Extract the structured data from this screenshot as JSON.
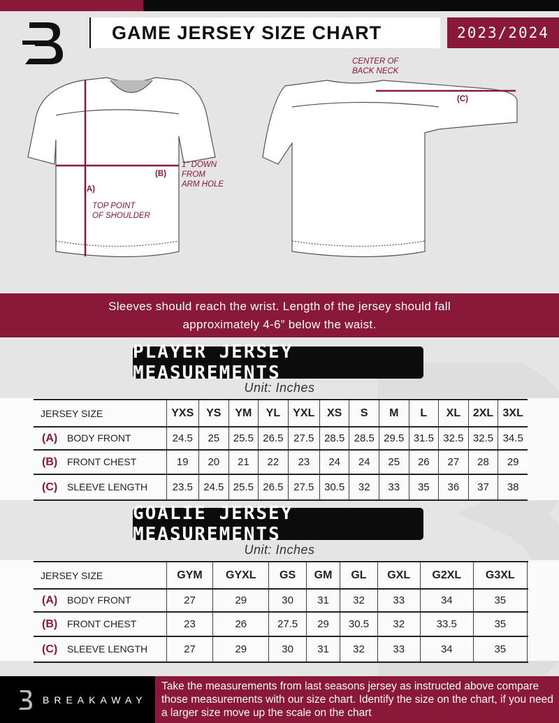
{
  "header": {
    "title": "GAME JERSEY SIZE CHART",
    "season": "2023/2024",
    "logo_letter": "B"
  },
  "diagram": {
    "front_notes": {
      "a": "(A)",
      "top_point": "TOP POINT\nOF SHOULDER",
      "b": "(B)",
      "arm_hole": "1\" DOWN\nFROM\nARM HOLE"
    },
    "back_notes": {
      "center": "CENTER OF\nBACK NECK",
      "c": "(C)"
    }
  },
  "instructions": {
    "line1": "Sleeves should reach the wrist. Length of the jersey should fall",
    "line2": "approximately 4-6” below the waist."
  },
  "player": {
    "title": "PLAYER JERSEY MEASUREMENTS",
    "unit": "Unit: Inches",
    "size_label": "JERSEY SIZE",
    "sizes": [
      "YXS",
      "YS",
      "YM",
      "YL",
      "YXL",
      "XS",
      "S",
      "M",
      "L",
      "XL",
      "2XL",
      "3XL"
    ],
    "rows": [
      {
        "letter": "(A)",
        "label": "BODY FRONT",
        "values": [
          "24.5",
          "25",
          "25.5",
          "26.5",
          "27.5",
          "28.5",
          "28.5",
          "29.5",
          "31.5",
          "32.5",
          "32.5",
          "34.5"
        ]
      },
      {
        "letter": "(B)",
        "label": "FRONT CHEST",
        "values": [
          "19",
          "20",
          "21",
          "22",
          "23",
          "24",
          "24",
          "25",
          "26",
          "27",
          "28",
          "29"
        ]
      },
      {
        "letter": "(C)",
        "label": "SLEEVE LENGTH",
        "values": [
          "23.5",
          "24.5",
          "25.5",
          "26.5",
          "27.5",
          "30.5",
          "32",
          "33",
          "35",
          "36",
          "37",
          "38"
        ]
      }
    ]
  },
  "goalie": {
    "title": "GOALIE JERSEY MEASUREMENTS",
    "unit": "Unit: Inches",
    "size_label": "JERSEY SIZE",
    "sizes": [
      "GYM",
      "GYXL",
      "GS",
      "GM",
      "GL",
      "GXL",
      "G2XL",
      "G3XL",
      ""
    ],
    "rows": [
      {
        "letter": "(A)",
        "label": "BODY FRONT",
        "values": [
          "27",
          "29",
          "30",
          "31",
          "32",
          "33",
          "34",
          "35",
          ""
        ]
      },
      {
        "letter": "(B)",
        "label": "FRONT CHEST",
        "values": [
          "23",
          "26",
          "27.5",
          "29",
          "30.5",
          "32",
          "33.5",
          "35",
          ""
        ]
      },
      {
        "letter": "(C)",
        "label": "SLEEVE LENGTH",
        "values": [
          "27",
          "29",
          "30",
          "31",
          "32",
          "33",
          "34",
          "35",
          ""
        ]
      }
    ]
  },
  "footer": {
    "brand": "BREAKAWAY",
    "text": "Take the measurements from last seasons jersey as instructed above compare those measurements  with our size chart. Identify the size on the chart, if you need a larger size move up the scale on the chart"
  },
  "colors": {
    "accent": "#8a1838",
    "dark": "#0a0a0a",
    "background": "#e5e5e6"
  }
}
